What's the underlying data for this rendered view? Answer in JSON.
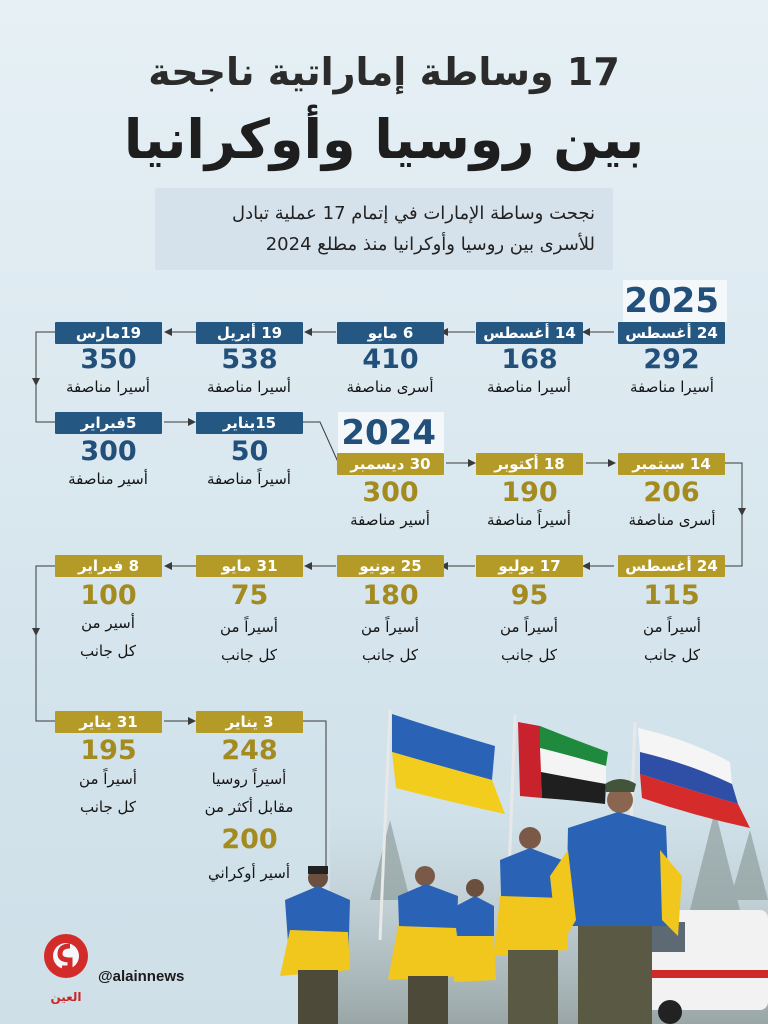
{
  "header": {
    "title_line1": "17 وساطة إماراتية ناجحة",
    "title_line2": "بين روسيا وأوكرانيا",
    "intro_line1": "نجحت وساطة الإمارات في إتمام 17 عملية تبادل",
    "intro_line2": "للأسرى بين روسيا وأوكرانيا منذ مطلع 2024"
  },
  "years": {
    "y2025": "2025",
    "y2024": "2024"
  },
  "timeline": {
    "row1": [
      {
        "date": "24 أغسطس",
        "count": "292",
        "label": "أسيرا مناصفة"
      },
      {
        "date": "14 أغسطس",
        "count": "168",
        "label": "أسيرا مناصفة"
      },
      {
        "date": "6 مايو",
        "count": "410",
        "label": "أسرى مناصفة"
      },
      {
        "date": "19 أبريل",
        "count": "538",
        "label": "أسيرا مناصفة"
      },
      {
        "date": "19مارس",
        "count": "350",
        "label": "أسيرا مناصفة"
      }
    ],
    "row2": [
      {
        "date": "15يناير",
        "count": "50",
        "label": "أسيراً مناصفة"
      },
      {
        "date": "5فبراير",
        "count": "300",
        "label": "أسير مناصفة"
      }
    ],
    "row3": [
      {
        "date": "14 سبتمبر",
        "count": "206",
        "label": "أسرى مناصفة"
      },
      {
        "date": "18 أكتوبر",
        "count": "190",
        "label": "أسيراً مناصفة"
      },
      {
        "date": "30 ديسمبر",
        "count": "300",
        "label": "أسير مناصفة"
      }
    ],
    "row4": [
      {
        "date": "24 أغسطس",
        "count": "115",
        "label1": "أسيراً من",
        "label2": "كل جانب"
      },
      {
        "date": "17 يوليو",
        "count": "95",
        "label1": "أسيراً من",
        "label2": "كل جانب"
      },
      {
        "date": "25 يونيو",
        "count": "180",
        "label1": "أسيراً من",
        "label2": "كل جانب"
      },
      {
        "date": "31 مايو",
        "count": "75",
        "label1": "أسيراً من",
        "label2": "كل جانب"
      },
      {
        "date": "8 فبراير",
        "count": "100",
        "label1": "أسير من",
        "label2": "كل جانب"
      }
    ],
    "row5": [
      {
        "date": "3 يناير",
        "count": "248",
        "label1": "أسيراً روسيا",
        "label2": "مقابل أكثر من",
        "count2": "200",
        "label3": "أسير أوكراني"
      },
      {
        "date": "31 يناير",
        "count": "195",
        "label1": "أسيراً من",
        "label2": "كل جانب"
      }
    ]
  },
  "footer": {
    "handle": "@alainnews",
    "logo_text": "العين"
  },
  "colors": {
    "blue": "#245782",
    "gold": "#b49a26",
    "text": "#1b1b1b"
  }
}
